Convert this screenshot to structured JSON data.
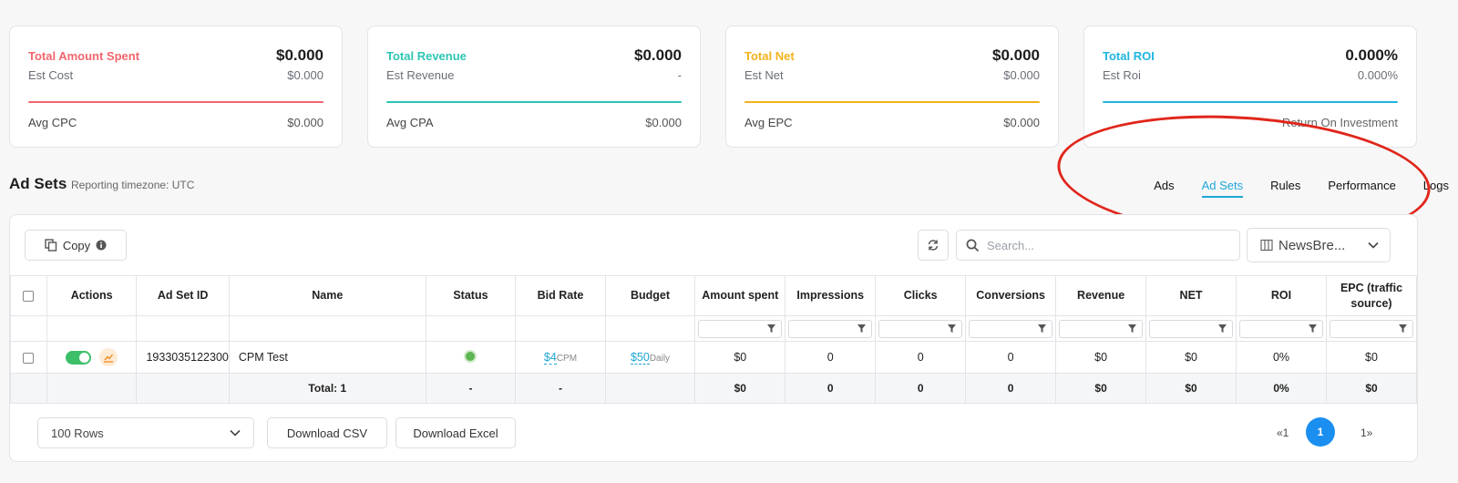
{
  "cards": [
    {
      "title": "Total Amount Spent",
      "value": "$0.000",
      "est_label": "Est Cost",
      "est_value": "$0.000",
      "avg_label": "Avg CPC",
      "avg_value": "$0.000",
      "color": "#f2666d"
    },
    {
      "title": "Total Revenue",
      "value": "$0.000",
      "est_label": "Est Revenue",
      "est_value": "-",
      "avg_label": "Avg CPA",
      "avg_value": "$0.000",
      "color": "#2cc6b3"
    },
    {
      "title": "Total Net",
      "value": "$0.000",
      "est_label": "Est Net",
      "est_value": "$0.000",
      "avg_label": "Avg EPC",
      "avg_value": "$0.000",
      "color": "#f3b21b"
    },
    {
      "title": "Total ROI",
      "value": "0.000%",
      "est_label": "Est Roi",
      "est_value": "0.000%",
      "avg_label": "Return On Investment",
      "avg_value": "",
      "color": "#1fb5de"
    }
  ],
  "section": {
    "title": "Ad Sets",
    "timezone": "Reporting timezone: UTC"
  },
  "tabs": [
    "Ads",
    "Ad Sets",
    "Rules",
    "Performance",
    "Logs"
  ],
  "active_tab": "Ad Sets",
  "toolbar": {
    "copy_label": "Copy",
    "search_placeholder": "Search...",
    "columns_label": "NewsBre..."
  },
  "table": {
    "headers": [
      "Actions",
      "Ad Set ID",
      "Name",
      "Status",
      "Bid Rate",
      "Budget",
      "Amount spent",
      "Impressions",
      "Clicks",
      "Conversions",
      "Revenue",
      "NET",
      "ROI",
      "EPC (traffic source)"
    ],
    "row": {
      "id": "1933035122300",
      "name": "CPM Test",
      "bid": "$4",
      "bid_unit": "CPM",
      "budget": "$50",
      "budget_unit": "Daily",
      "amount": "$0",
      "impressions": "0",
      "clicks": "0",
      "conversions": "0",
      "revenue": "$0",
      "net": "$0",
      "roi": "0%",
      "epc": "$0"
    },
    "total": {
      "label": "Total: 1",
      "status": "-",
      "bid": "-",
      "amount": "$0",
      "impressions": "0",
      "clicks": "0",
      "conversions": "0",
      "revenue": "$0",
      "net": "$0",
      "roi": "0%",
      "epc": "$0"
    }
  },
  "footer": {
    "rows_label": "100 Rows",
    "csv_label": "Download CSV",
    "excel_label": "Download Excel",
    "prev": "«1",
    "page": "1",
    "next": "1»"
  }
}
